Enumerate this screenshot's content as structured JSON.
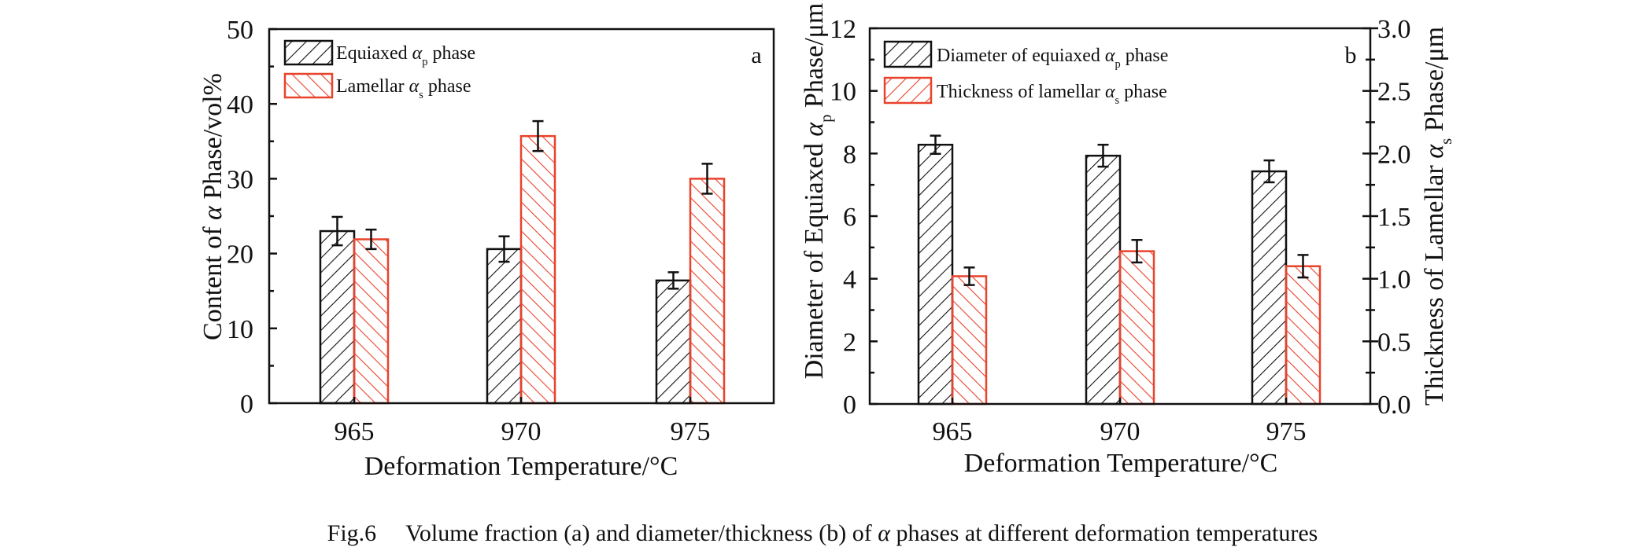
{
  "figure": {
    "caption_prefix": "Fig.6",
    "caption_text_before": "Volume fraction (a) and diameter/thickness (b) of ",
    "caption_alpha": "α",
    "caption_text_after": " phases at different deformation temperatures"
  },
  "colors": {
    "equiaxed": "#111111",
    "lamellar": "#e8432c"
  },
  "chart_data": [
    {
      "panel": "a",
      "type": "bar",
      "title": "",
      "panel_label": "a",
      "categories": [
        "965",
        "970",
        "975"
      ],
      "xlabel": "Deformation Temperature/°C",
      "ylabel": {
        "before": "Content of ",
        "greek": "α",
        "sub": "",
        "after": " Phase/vol%"
      },
      "ylim": [
        0,
        50
      ],
      "yticks": [
        0,
        10,
        20,
        30,
        40,
        50
      ],
      "yminor_step": 5,
      "grid": false,
      "legend_placement": "top-left",
      "series": [
        {
          "name": "Equiaxed αp phase",
          "legend": {
            "before": "Equiaxed ",
            "greek": "α",
            "sub": "p",
            "after": " phase"
          },
          "hatch": "forward",
          "color_key": "equiaxed",
          "values": [
            23.0,
            20.6,
            16.4
          ],
          "errors": [
            1.9,
            1.7,
            1.1
          ]
        },
        {
          "name": "Lamellar αs phase",
          "legend": {
            "before": "Lamellar ",
            "greek": "α",
            "sub": "s",
            "after": " phase"
          },
          "hatch": "backward",
          "legend_hatch": "backward",
          "color_key": "lamellar",
          "values": [
            21.9,
            35.7,
            30.0
          ],
          "errors": [
            1.3,
            2.0,
            2.0
          ]
        }
      ]
    },
    {
      "panel": "b",
      "type": "bar",
      "title": "",
      "panel_label": "b",
      "categories": [
        "965",
        "970",
        "975"
      ],
      "xlabel": "Deformation Temperature/°C",
      "ylabel": {
        "before": "Diameter of Equiaxed ",
        "greek": "α",
        "sub": "p",
        "after": " Phase/μm"
      },
      "ylim": [
        0,
        12
      ],
      "yticks": [
        0,
        2,
        4,
        6,
        8,
        10,
        12
      ],
      "ytick_labels": [
        "0",
        "2",
        "4",
        "6",
        "8",
        "10",
        "12"
      ],
      "yminor_step": 1,
      "y2label": {
        "before": "Thickness of Lamellar ",
        "greek": "α",
        "sub": "s",
        "after": " Phase/μm"
      },
      "y2lim": [
        0,
        3.0
      ],
      "y2ticks": [
        0,
        0.5,
        1.0,
        1.5,
        2.0,
        2.5,
        3.0
      ],
      "y2tick_labels": [
        "0.0",
        "0.5",
        "1.0",
        "1.5",
        "2.0",
        "2.5",
        "3.0"
      ],
      "y2minor_step": 0.25,
      "grid": false,
      "legend_placement": "top-left",
      "series": [
        {
          "name": "Diameter of equiaxed αp phase",
          "legend": {
            "before": "Diameter of equiaxed ",
            "greek": "α",
            "sub": "p",
            "after": " phase"
          },
          "axis": "left",
          "hatch": "forward",
          "color_key": "equiaxed",
          "values": [
            8.28,
            7.93,
            7.43
          ],
          "errors": [
            0.29,
            0.35,
            0.35
          ]
        },
        {
          "name": "Thickness of lamellar αs phase",
          "legend": {
            "before": "Thickness of lamellar ",
            "greek": "α",
            "sub": "s",
            "after": " phase"
          },
          "axis": "right",
          "hatch": "backward",
          "legend_hatch": "forward",
          "color_key": "lamellar",
          "values": [
            1.02,
            1.22,
            1.1
          ],
          "errors": [
            0.07,
            0.09,
            0.09
          ]
        }
      ]
    }
  ]
}
